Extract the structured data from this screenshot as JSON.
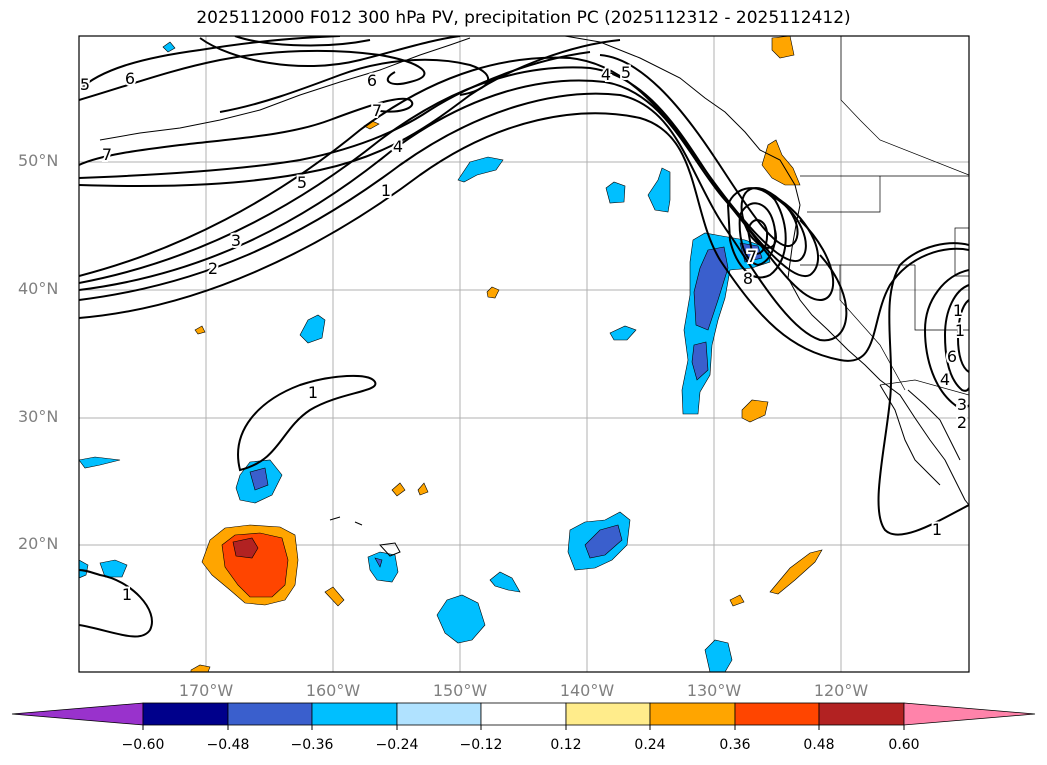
{
  "title": "2025112000 F012 300 hPa PV, precipitation PC (2025112312 - 2025112412)",
  "map": {
    "lat_labels": [
      "50°N",
      "40°N",
      "30°N",
      "20°N"
    ],
    "lon_labels": [
      "170°W",
      "160°W",
      "150°W",
      "140°W",
      "130°W",
      "120°W"
    ],
    "contour_labels": [
      "5",
      "6",
      "7",
      "4",
      "5",
      "1",
      "3",
      "2",
      "7",
      "6",
      "4",
      "5",
      "1",
      "7",
      "8",
      "1",
      "1",
      "6",
      "4",
      "3",
      "2",
      "1",
      "1"
    ],
    "pv_contour_levels": [
      1,
      2,
      3,
      4,
      5,
      6,
      7,
      8
    ],
    "contour_color": "#000000"
  },
  "colorbar": {
    "tick_labels": [
      "−0.60",
      "−0.48",
      "−0.36",
      "−0.24",
      "−0.12",
      "0.12",
      "0.24",
      "0.36",
      "0.48",
      "0.60"
    ],
    "colors": [
      "#9932cc",
      "#00008b",
      "#3a5fcd",
      "#00bfff",
      "#b0e2ff",
      "#ffffff",
      "#ffec8b",
      "#ffa500",
      "#ff4500",
      "#b22222",
      "#ff83aa"
    ]
  }
}
